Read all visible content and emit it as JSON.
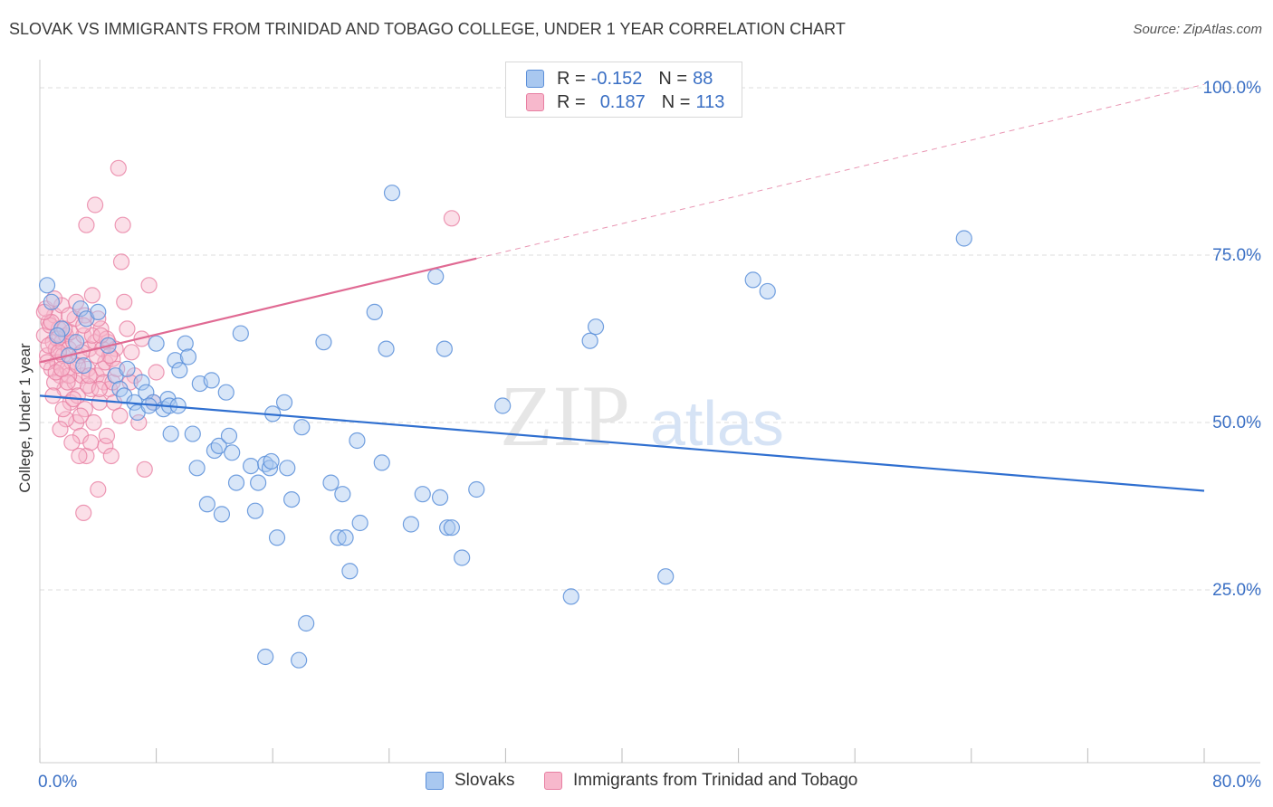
{
  "title": "SLOVAK VS IMMIGRANTS FROM TRINIDAD AND TOBAGO COLLEGE, UNDER 1 YEAR CORRELATION CHART",
  "source": "Source: ZipAtlas.com",
  "watermark": {
    "zip": "ZIP",
    "atlas": "atlas"
  },
  "legend_top": [
    {
      "r_label": "R =",
      "r_value": "-0.152",
      "n_label": "N =",
      "n_value": "88"
    },
    {
      "r_label": "R =",
      "r_value": "0.187",
      "n_label": "N =",
      "n_value": "113"
    }
  ],
  "legend_bottom": [
    {
      "label": "Slovaks"
    },
    {
      "label": "Immigrants from Trinidad and Tobago"
    }
  ],
  "colors": {
    "blue_fill": "#a9c8f0",
    "blue_stroke": "#5b8fd9",
    "blue_line": "#2f6fd0",
    "pink_fill": "#f7b8cc",
    "pink_stroke": "#e87fa2",
    "pink_line": "#e06a93",
    "tick_label": "#3a6fc4",
    "grid": "#dddddd"
  },
  "chart_data": {
    "type": "scatter",
    "title": "SLOVAK VS IMMIGRANTS FROM TRINIDAD AND TOBAGO COLLEGE, UNDER 1 YEAR CORRELATION CHART",
    "xlabel": "",
    "ylabel": "College, Under 1 year",
    "xlim": [
      0,
      80
    ],
    "ylim": [
      2,
      104
    ],
    "x_tick_labels": [
      "0.0%",
      "80.0%"
    ],
    "y_ticks": [
      25,
      50,
      75,
      100
    ],
    "y_tick_labels": [
      "25.0%",
      "50.0%",
      "75.0%",
      "100.0%"
    ],
    "grid": "horizontal dashed",
    "legend_placement": "top-center",
    "series": [
      {
        "name": "Slovaks",
        "r": -0.152,
        "n": 88,
        "trend": {
          "x": [
            0,
            80
          ],
          "y": [
            54.0,
            39.8
          ]
        },
        "points": [
          [
            0.5,
            70.5
          ],
          [
            0.8,
            68
          ],
          [
            1.5,
            64
          ],
          [
            2.5,
            62
          ],
          [
            2.8,
            67
          ],
          [
            3.2,
            65.5
          ],
          [
            4,
            66.5
          ],
          [
            4.7,
            61.5
          ],
          [
            5.2,
            57
          ],
          [
            5.5,
            55
          ],
          [
            5.8,
            54
          ],
          [
            6.5,
            53
          ],
          [
            6.7,
            51.5
          ],
          [
            7,
            56
          ],
          [
            7.3,
            54.5
          ],
          [
            7.8,
            53
          ],
          [
            8,
            61.8
          ],
          [
            8.5,
            52
          ],
          [
            8.8,
            53.5
          ],
          [
            8.9,
            52.5
          ],
          [
            9,
            48.3
          ],
          [
            9.3,
            59.3
          ],
          [
            9.6,
            57.8
          ],
          [
            10,
            61.8
          ],
          [
            10.2,
            59.8
          ],
          [
            10.5,
            48.3
          ],
          [
            10.8,
            43.2
          ],
          [
            11,
            55.8
          ],
          [
            11.5,
            37.8
          ],
          [
            11.8,
            56.3
          ],
          [
            12,
            45.8
          ],
          [
            12.3,
            46.5
          ],
          [
            12.5,
            36.3
          ],
          [
            12.8,
            54.5
          ],
          [
            13.2,
            45.5
          ],
          [
            13.5,
            41
          ],
          [
            13.8,
            63.3
          ],
          [
            14.5,
            43.5
          ],
          [
            14.8,
            36.8
          ],
          [
            15,
            41
          ],
          [
            15.5,
            43.8
          ],
          [
            15.8,
            43.2
          ],
          [
            15.9,
            44.2
          ],
          [
            16,
            51.3
          ],
          [
            16.3,
            32.8
          ],
          [
            16.8,
            53
          ],
          [
            17,
            43.2
          ],
          [
            17.3,
            38.5
          ],
          [
            18,
            49.3
          ],
          [
            19.5,
            62
          ],
          [
            20,
            41
          ],
          [
            20.5,
            32.8
          ],
          [
            20.8,
            39.3
          ],
          [
            21,
            32.8
          ],
          [
            21.3,
            27.8
          ],
          [
            21.8,
            47.3
          ],
          [
            23,
            66.5
          ],
          [
            23.5,
            44
          ],
          [
            23.8,
            61
          ],
          [
            24.2,
            84.3
          ],
          [
            25.5,
            34.8
          ],
          [
            26.3,
            39.3
          ],
          [
            27.2,
            71.8
          ],
          [
            27.5,
            38.8
          ],
          [
            27.8,
            61
          ],
          [
            28,
            34.3
          ],
          [
            28.3,
            34.3
          ],
          [
            29,
            29.8
          ],
          [
            31.8,
            52.5
          ],
          [
            36.5,
            24
          ],
          [
            37.8,
            62.2
          ],
          [
            38.2,
            64.3
          ],
          [
            43,
            27
          ],
          [
            49,
            71.3
          ],
          [
            50,
            69.6
          ],
          [
            63.5,
            77.5
          ],
          [
            7.5,
            52.5
          ],
          [
            18.3,
            20
          ],
          [
            15.5,
            15
          ],
          [
            17.8,
            14.5
          ],
          [
            13,
            48
          ],
          [
            9.5,
            52.5
          ],
          [
            6,
            58
          ],
          [
            22,
            35
          ],
          [
            30,
            40
          ],
          [
            3,
            58.5
          ],
          [
            1.2,
            63
          ],
          [
            2,
            60
          ]
        ]
      },
      {
        "name": "Immigrants from Trinidad and Tobago",
        "r": 0.187,
        "n": 113,
        "trend": {
          "x": [
            0,
            30
          ],
          "y": [
            59.0,
            74.5
          ],
          "dashed_x": [
            30,
            80
          ],
          "dashed_y": [
            74.5,
            100.5
          ]
        },
        "points": [
          [
            0.3,
            63
          ],
          [
            0.5,
            60
          ],
          [
            0.6,
            65
          ],
          [
            0.8,
            58
          ],
          [
            0.9,
            62
          ],
          [
            1,
            66
          ],
          [
            1.1,
            61
          ],
          [
            1.2,
            59
          ],
          [
            1.3,
            64
          ],
          [
            1.4,
            57
          ],
          [
            1.5,
            62
          ],
          [
            1.6,
            60
          ],
          [
            1.7,
            55
          ],
          [
            1.8,
            63
          ],
          [
            1.9,
            58
          ],
          [
            2,
            61
          ],
          [
            2.1,
            53
          ],
          [
            2.2,
            59
          ],
          [
            2.3,
            62
          ],
          [
            2.4,
            56
          ],
          [
            2.5,
            50
          ],
          [
            2.6,
            54
          ],
          [
            2.7,
            60
          ],
          [
            2.8,
            48
          ],
          [
            2.9,
            57
          ],
          [
            3,
            63
          ],
          [
            3.1,
            52
          ],
          [
            3.2,
            45
          ],
          [
            3.3,
            58
          ],
          [
            3.4,
            61
          ],
          [
            3.5,
            55
          ],
          [
            3.6,
            69
          ],
          [
            3.7,
            50
          ],
          [
            3.8,
            62
          ],
          [
            3.9,
            57
          ],
          [
            4,
            40
          ],
          [
            4.1,
            53
          ],
          [
            4.2,
            64
          ],
          [
            4.3,
            58
          ],
          [
            4.4,
            56
          ],
          [
            4.5,
            46.5
          ],
          [
            4.6,
            48
          ],
          [
            4.7,
            62
          ],
          [
            4.8,
            55
          ],
          [
            4.9,
            45
          ],
          [
            5,
            56
          ],
          [
            5.2,
            61
          ],
          [
            5.4,
            88
          ],
          [
            5.6,
            74
          ],
          [
            5.8,
            68
          ],
          [
            3.8,
            82.5
          ],
          [
            6,
            64
          ],
          [
            3.2,
            79.5
          ],
          [
            5.7,
            79.5
          ],
          [
            6.5,
            57
          ],
          [
            7,
            62.5
          ],
          [
            7.5,
            70.5
          ],
          [
            7.2,
            43
          ],
          [
            8,
            57.5
          ],
          [
            3,
            36.5
          ],
          [
            0.4,
            67
          ],
          [
            0.7,
            64.5
          ],
          [
            1.5,
            67.5
          ],
          [
            2.5,
            68
          ],
          [
            1,
            56
          ],
          [
            1.8,
            50.5
          ],
          [
            2.2,
            47
          ],
          [
            2.7,
            45
          ],
          [
            0.9,
            54
          ],
          [
            1.6,
            52
          ],
          [
            2,
            57
          ],
          [
            2.3,
            53.5
          ],
          [
            3.3,
            55.5
          ],
          [
            4.5,
            59
          ],
          [
            5.1,
            53
          ],
          [
            5.5,
            51
          ],
          [
            6.2,
            56
          ],
          [
            6.8,
            50
          ],
          [
            4,
            65.5
          ],
          [
            1.2,
            62.5
          ],
          [
            0.6,
            61.5
          ],
          [
            1.3,
            60.5
          ],
          [
            2.1,
            63.5
          ],
          [
            2.9,
            60.5
          ],
          [
            3.6,
            63
          ],
          [
            4.3,
            61
          ],
          [
            5,
            59.5
          ],
          [
            0.5,
            59
          ],
          [
            1.1,
            57.5
          ],
          [
            1.9,
            56
          ],
          [
            2.6,
            58.5
          ],
          [
            3.4,
            57
          ],
          [
            4.1,
            55
          ],
          [
            4.8,
            60
          ],
          [
            0.8,
            65
          ],
          [
            1.7,
            64
          ],
          [
            2.4,
            65.5
          ],
          [
            3.1,
            66
          ],
          [
            3.9,
            60
          ],
          [
            4.6,
            62.5
          ],
          [
            28.3,
            80.5
          ],
          [
            1.4,
            49
          ],
          [
            2.8,
            51
          ],
          [
            3.5,
            47
          ],
          [
            0.3,
            66.5
          ],
          [
            1,
            68.5
          ],
          [
            2,
            66
          ],
          [
            3,
            64.5
          ],
          [
            4.2,
            63
          ],
          [
            5.3,
            58
          ],
          [
            6.3,
            60.5
          ],
          [
            7.8,
            53
          ],
          [
            1.5,
            58
          ]
        ]
      }
    ]
  }
}
